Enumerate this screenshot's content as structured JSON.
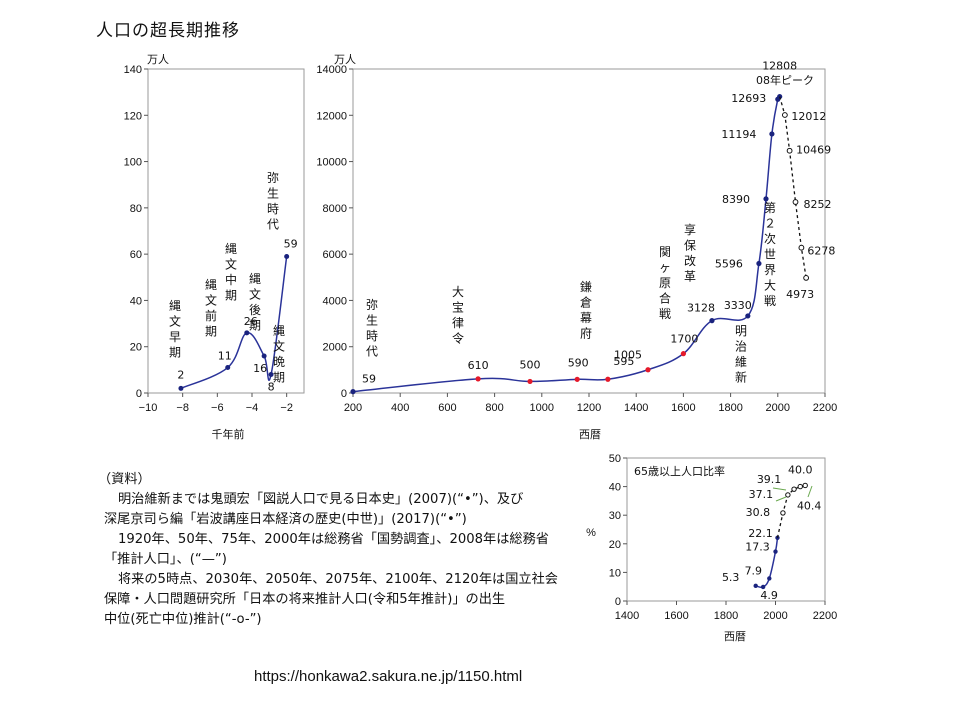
{
  "page_title": "人口の超長期推移",
  "chart_data": [
    {
      "type": "line",
      "unit": "万人",
      "xlabel": "千年前",
      "x_ticks": [
        -10,
        -8,
        -6,
        -4,
        -2
      ],
      "y_ticks": [
        0,
        20,
        40,
        60,
        80,
        100,
        120,
        140
      ],
      "xlim": [
        -10,
        -1
      ],
      "ylim": [
        0,
        140
      ],
      "series": [
        {
          "points": [
            {
              "x": -8.1,
              "y": 2,
              "label": "2"
            },
            {
              "x": -5.4,
              "y": 11,
              "label": "11"
            },
            {
              "x": -4.3,
              "y": 26,
              "label": "26"
            },
            {
              "x": -3.3,
              "y": 16,
              "label": "16"
            },
            {
              "x": -2.9,
              "y": 8,
              "label": "8"
            },
            {
              "x": -2.0,
              "y": 59,
              "label": "59"
            }
          ]
        }
      ],
      "annotations": [
        "縄文早期",
        "縄文前期",
        "縄文中期",
        "縄文後期",
        "縄文晩期",
        "弥生時代"
      ]
    },
    {
      "type": "line",
      "unit": "万人",
      "xlabel": "西暦",
      "x_ticks": [
        200,
        400,
        600,
        800,
        1000,
        1200,
        1400,
        1600,
        1800,
        2000,
        2200
      ],
      "y_ticks": [
        0,
        2000,
        4000,
        6000,
        8000,
        10000,
        12000,
        14000
      ],
      "xlim": [
        200,
        2200
      ],
      "ylim": [
        0,
        14000
      ],
      "series": [
        {
          "points": [
            {
              "x": 200,
              "y": 59,
              "label": "59"
            },
            {
              "x": 730,
              "y": 610,
              "label": "610"
            },
            {
              "x": 950,
              "y": 500,
              "label": "500"
            },
            {
              "x": 1150,
              "y": 590,
              "label": "590"
            },
            {
              "x": 1280,
              "y": 595,
              "label": "595"
            },
            {
              "x": 1450,
              "y": 1005,
              "label": "1005"
            },
            {
              "x": 1600,
              "y": 1700,
              "label": "1700"
            },
            {
              "x": 1721,
              "y": 3128,
              "label": "3128"
            },
            {
              "x": 1873,
              "y": 3330,
              "label": "3330"
            },
            {
              "x": 1920,
              "y": 5596,
              "label": "5596"
            },
            {
              "x": 1950,
              "y": 8390,
              "label": "8390"
            },
            {
              "x": 1975,
              "y": 11194,
              "label": "11194"
            },
            {
              "x": 2000,
              "y": 12693,
              "label": "12693"
            },
            {
              "x": 2008,
              "y": 12808,
              "label": "12808"
            }
          ]
        },
        {
          "points": [
            {
              "x": 2008,
              "y": 12808
            },
            {
              "x": 2030,
              "y": 12012,
              "label": "12012"
            },
            {
              "x": 2050,
              "y": 10469,
              "label": "10469"
            },
            {
              "x": 2075,
              "y": 8252,
              "label": "8252"
            },
            {
              "x": 2100,
              "y": 6278,
              "label": "6278"
            },
            {
              "x": 2120,
              "y": 4973,
              "label": "4973"
            }
          ]
        }
      ],
      "annotations": [
        "弥生時代",
        "大宝律令",
        "鎌倉幕府",
        "関ヶ原合戦",
        "享保改革",
        "明治維新",
        "第２次世界大戦",
        "08年ピーク"
      ]
    },
    {
      "type": "line",
      "unit": "%",
      "xlabel": "西暦",
      "legend": "65歳以上人口比率",
      "x_ticks": [
        1400,
        1600,
        1800,
        2000,
        2200
      ],
      "y_ticks": [
        0,
        10,
        20,
        30,
        40,
        50
      ],
      "xlim": [
        1400,
        2200
      ],
      "ylim": [
        0,
        50
      ],
      "series": [
        {
          "points": [
            {
              "x": 1920,
              "y": 5.3,
              "label": "5.3"
            },
            {
              "x": 1950,
              "y": 4.9,
              "label": "4.9"
            },
            {
              "x": 1975,
              "y": 7.9,
              "label": "7.9"
            },
            {
              "x": 2000,
              "y": 17.3,
              "label": "17.3"
            },
            {
              "x": 2008,
              "y": 22.1,
              "label": "22.1"
            }
          ]
        },
        {
          "points": [
            {
              "x": 2008,
              "y": 22.1
            },
            {
              "x": 2030,
              "y": 30.8,
              "label": "30.8"
            },
            {
              "x": 2050,
              "y": 37.1,
              "label": "37.1"
            },
            {
              "x": 2075,
              "y": 39.1,
              "label": "39.1"
            },
            {
              "x": 2100,
              "y": 40.0,
              "label": "40.0"
            },
            {
              "x": 2120,
              "y": 40.4,
              "label": "40.4"
            }
          ]
        }
      ]
    }
  ],
  "notes": [
    "（資料）",
    "明治維新までは鬼頭宏「図説人口で見る日本史」(2007)(“•”)、及び",
    "深尾京司ら編「岩波講座日本経済の歴史(中世)」(2017)(“•”)",
    "1920年、50年、75年、2000年は総務省「国勢調査」、2008年は総務省",
    "「推計人口」、(“—”)",
    "将来の5時点、2030年、2050年、2075年、2100年、2120年は国立社会",
    "保障・人口問題研究所「日本の将来推計人口(令和5年推計)」の出生",
    "中位(死亡中位)推計(“-o-”)"
  ],
  "source_url": "https://honkawa2.sakura.ne.jp/1150.html",
  "colors": {
    "line": "#2a3399",
    "marker": "#1a237e",
    "red_marker": "#e5192a",
    "axis": "#555555",
    "frame": "#9a9a9a"
  }
}
